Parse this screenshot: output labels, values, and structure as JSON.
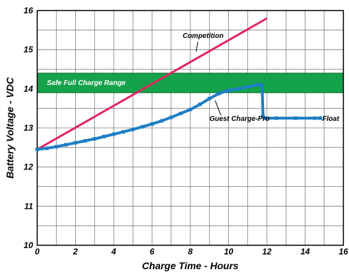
{
  "colors": {
    "competition": "#e0245e",
    "guest": "#1e7fc4",
    "band_fill": "#14a24a",
    "band_edge": "#0b6b2f",
    "grid": "#7a7a7a",
    "frame": "#000000"
  },
  "chart_data": {
    "type": "line",
    "xlabel": "Charge Time - Hours",
    "ylabel": "Battery Voltage - VDC",
    "xlim": [
      0,
      16
    ],
    "ylim": [
      10,
      16
    ],
    "grid": true,
    "x_ticks": [
      0,
      2,
      4,
      6,
      8,
      10,
      12,
      14,
      16
    ],
    "y_ticks": [
      10,
      11,
      12,
      13,
      14,
      15,
      16
    ],
    "x_tick_labels": [
      "0",
      "2",
      "4",
      "6",
      "8",
      "10",
      "12",
      "14",
      "16"
    ],
    "y_tick_labels": [
      "10",
      "11",
      "12",
      "13",
      "14",
      "15",
      "16"
    ],
    "band": {
      "label": "Safe Full Charge Range",
      "y": [
        13.9,
        14.4
      ]
    },
    "series": [
      {
        "name": "Competition",
        "points": [
          [
            0,
            12.45
          ],
          [
            12,
            15.8
          ]
        ]
      },
      {
        "name": "Guest Charge-Pro",
        "points": [
          [
            0,
            12.45
          ],
          [
            0.5,
            12.48
          ],
          [
            1.0,
            12.52
          ],
          [
            1.5,
            12.57
          ],
          [
            2.0,
            12.62
          ],
          [
            2.5,
            12.67
          ],
          [
            3.0,
            12.72
          ],
          [
            3.5,
            12.78
          ],
          [
            4.0,
            12.84
          ],
          [
            4.5,
            12.9
          ],
          [
            5.0,
            12.96
          ],
          [
            5.5,
            13.03
          ],
          [
            6.0,
            13.1
          ],
          [
            6.5,
            13.18
          ],
          [
            7.0,
            13.27
          ],
          [
            7.5,
            13.37
          ],
          [
            8.0,
            13.47
          ],
          [
            8.5,
            13.6
          ],
          [
            9.0,
            13.75
          ],
          [
            9.5,
            13.88
          ],
          [
            10.0,
            13.96
          ],
          [
            10.5,
            14.0
          ],
          [
            11.0,
            14.05
          ],
          [
            11.5,
            14.1
          ],
          [
            11.75,
            14.1
          ],
          [
            11.8,
            13.3
          ],
          [
            11.9,
            13.25
          ],
          [
            12.5,
            13.25
          ],
          [
            13.5,
            13.25
          ],
          [
            14.5,
            13.25
          ],
          [
            14.8,
            13.25
          ]
        ]
      }
    ],
    "annotations": [
      {
        "text": "Competition",
        "series": "Competition"
      },
      {
        "text": "Guest Charge-Pro",
        "series": "Guest Charge-Pro"
      },
      {
        "text": "Float",
        "series": "Guest Charge-Pro"
      }
    ]
  }
}
